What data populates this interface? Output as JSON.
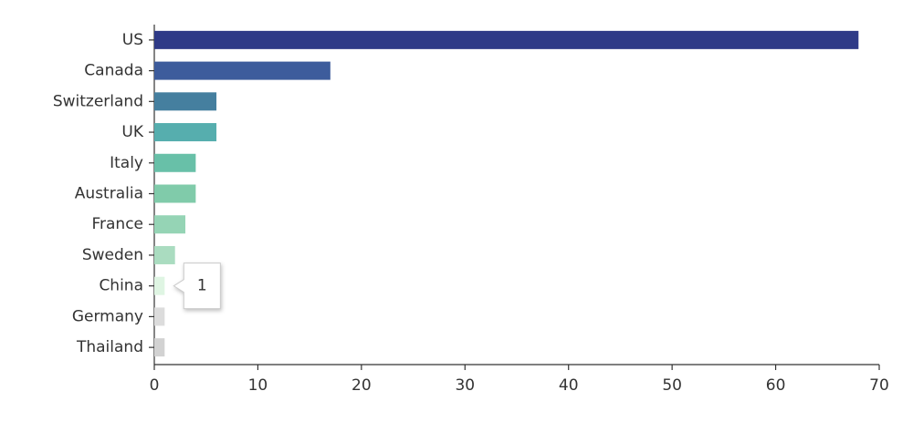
{
  "chart_data": {
    "type": "bar",
    "orientation": "horizontal",
    "categories": [
      "US",
      "Canada",
      "Switzerland",
      "UK",
      "Italy",
      "Australia",
      "France",
      "Sweden",
      "China",
      "Germany",
      "Thailand"
    ],
    "values": [
      68,
      17,
      6,
      6,
      4,
      4,
      3,
      2,
      1,
      1,
      1
    ],
    "colors": [
      "#2e3a87",
      "#3d5c9c",
      "#457f9f",
      "#56aeae",
      "#68c0a8",
      "#80cbaa",
      "#95d4b5",
      "#aadcc0",
      "#dff5e3",
      "#dcdcdc",
      "#d2d2d2"
    ],
    "xlim": [
      0,
      70
    ],
    "xticks": [
      0,
      10,
      20,
      30,
      40,
      50,
      60,
      70
    ],
    "grid": false
  }
}
